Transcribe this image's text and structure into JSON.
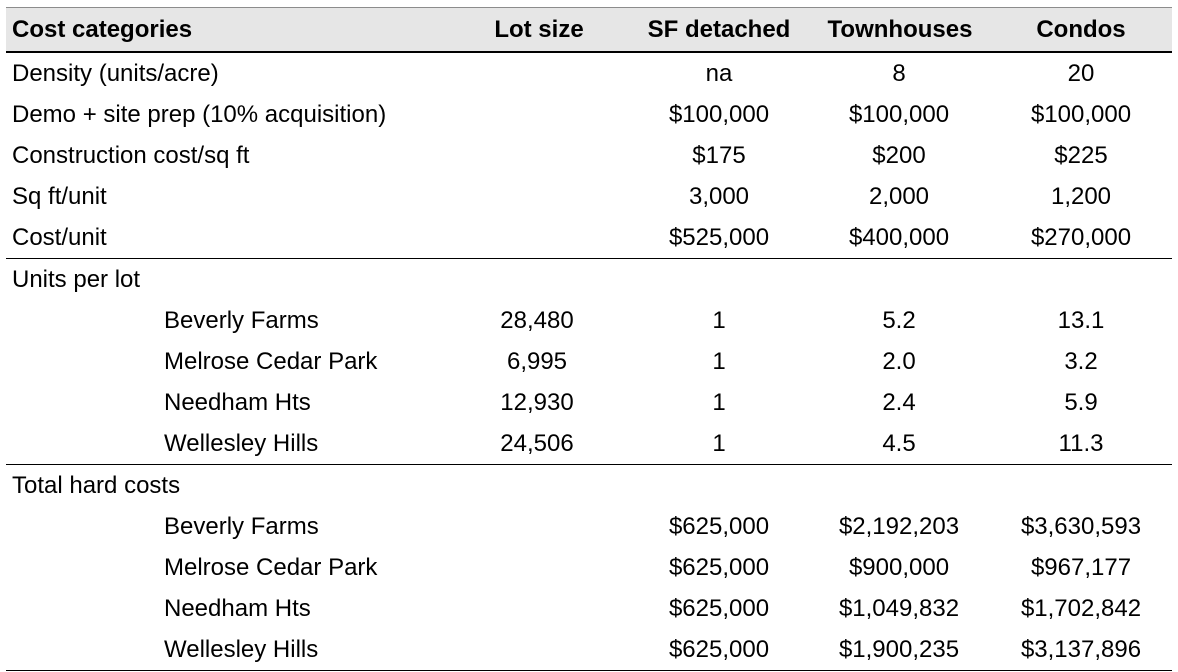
{
  "header": {
    "category": "Cost categories",
    "lot_size": "Lot size",
    "sf_detached": "SF detached",
    "townhouses": "Townhouses",
    "condos": "Condos"
  },
  "assumptions": [
    {
      "label": "Density (units/acre)",
      "sf": "na",
      "th": "8",
      "co": "20"
    },
    {
      "label": "Demo + site prep (10% acquisition)",
      "sf": "$100,000",
      "th": "$100,000",
      "co": "$100,000"
    },
    {
      "label": "Construction cost/sq ft",
      "sf": "$175",
      "th": "$200",
      "co": "$225"
    },
    {
      "label": "Sq ft/unit",
      "sf": "3,000",
      "th": "2,000",
      "co": "1,200"
    },
    {
      "label": "Cost/unit",
      "sf": "$525,000",
      "th": "$400,000",
      "co": "$270,000"
    }
  ],
  "units_section": {
    "title": "Units per lot",
    "rows": [
      {
        "label": "Beverly Farms",
        "lot": "28,480",
        "sf": "1",
        "th": "5.2",
        "co": "13.1"
      },
      {
        "label": "Melrose Cedar Park",
        "lot": "6,995",
        "sf": "1",
        "th": "2.0",
        "co": "3.2"
      },
      {
        "label": "Needham Hts",
        "lot": "12,930",
        "sf": "1",
        "th": "2.4",
        "co": "5.9"
      },
      {
        "label": "Wellesley Hills",
        "lot": "24,506",
        "sf": "1",
        "th": "4.5",
        "co": "11.3"
      }
    ]
  },
  "costs_section": {
    "title": "Total hard costs",
    "rows": [
      {
        "label": "Beverly Farms",
        "sf": "$625,000",
        "th": "$2,192,203",
        "co": "$3,630,593"
      },
      {
        "label": "Melrose Cedar Park",
        "sf": "$625,000",
        "th": "$900,000",
        "co": "$967,177"
      },
      {
        "label": "Needham Hts",
        "sf": "$625,000",
        "th": "$1,049,832",
        "co": "$1,702,842"
      },
      {
        "label": "Wellesley Hills",
        "sf": "$625,000",
        "th": "$1,900,235",
        "co": "$3,137,896"
      }
    ]
  }
}
